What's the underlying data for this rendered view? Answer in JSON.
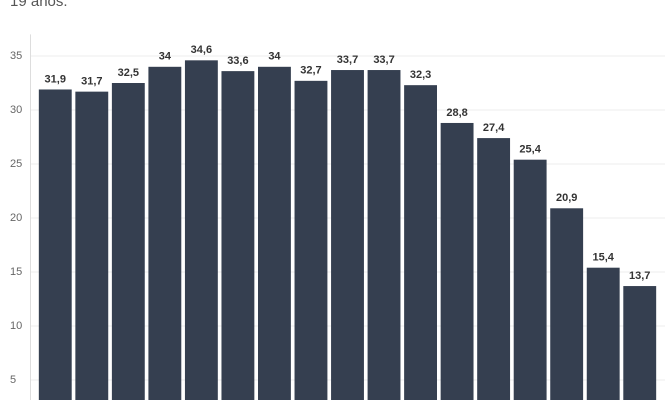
{
  "chart_data": {
    "type": "bar",
    "subtitle": "19 años.",
    "categories": [
      null,
      null,
      null,
      null,
      null,
      null,
      null,
      null,
      null,
      null,
      null,
      null,
      null,
      null,
      null,
      null,
      null
    ],
    "values": [
      31.9,
      31.7,
      32.5,
      34,
      34.6,
      33.6,
      34,
      32.7,
      33.7,
      33.7,
      32.3,
      28.8,
      27.4,
      25.4,
      20.9,
      15.4,
      13.7
    ],
    "value_labels": [
      "31,9",
      "31,7",
      "32,5",
      "34",
      "34,6",
      "33,6",
      "34",
      "32,7",
      "33,7",
      "33,7",
      "32,3",
      "28,8",
      "27,4",
      "25,4",
      "20,9",
      "15,4",
      "13,7"
    ],
    "color": "#353f50",
    "ylim": [
      3.15,
      37
    ],
    "yticks": [
      5,
      10,
      15,
      20,
      25,
      30,
      35
    ],
    "grid": true
  }
}
